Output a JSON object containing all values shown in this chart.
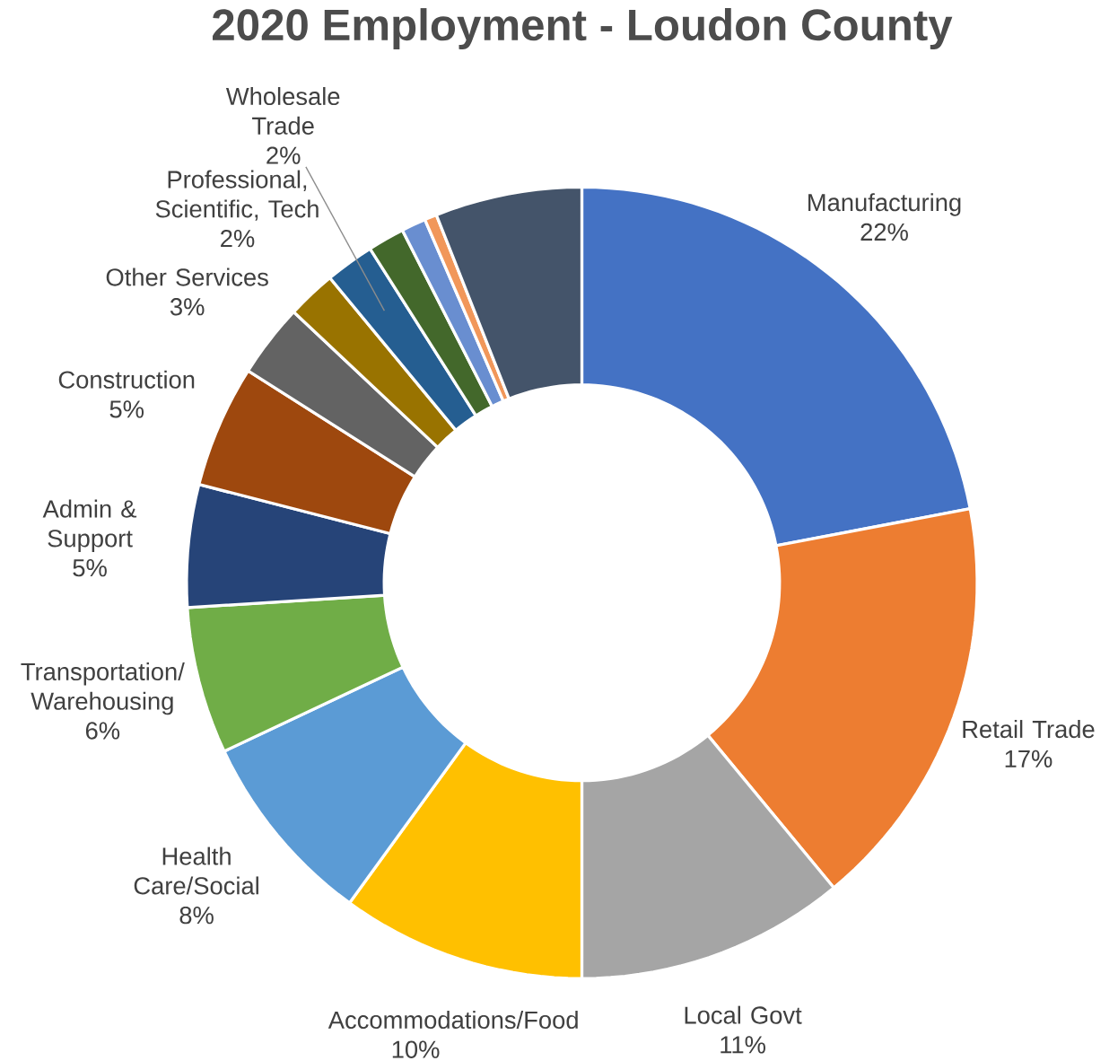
{
  "chart_data": {
    "type": "donut",
    "title": "2020 Employment - Loudon County",
    "categories": [
      "Manufacturing",
      "Retail Trade",
      "Local Govt",
      "Accommodations/Food",
      "Health Care/Social",
      "Transportation/ Warehousing",
      "Admin & Support",
      "Construction",
      "Other Services",
      "Professional, Scientific, Tech",
      "Wholesale Trade",
      null,
      null,
      null,
      null
    ],
    "values": [
      22,
      17,
      11,
      10,
      8,
      6,
      5,
      5,
      3,
      2,
      2,
      1.5,
      1,
      0.5,
      6
    ],
    "value_labels": [
      "22%",
      "17%",
      "11%",
      "10%",
      "8%",
      "6%",
      "5%",
      "5%",
      "3%",
      "2%",
      "2%",
      null,
      null,
      null,
      null
    ],
    "colors": [
      "#4472c4",
      "#ed7d31",
      "#a5a5a5",
      "#ffc000",
      "#5b9bd5",
      "#70ad47",
      "#264478",
      "#9e480e",
      "#636363",
      "#997300",
      "#255e91",
      "#43682b",
      "#698ed0",
      "#f1975a",
      "#44546a"
    ]
  }
}
